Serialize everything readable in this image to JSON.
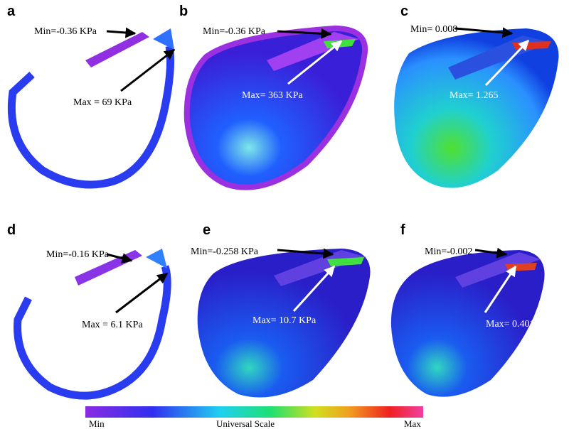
{
  "panels": [
    {
      "label": "a",
      "min": "Min=-0.36 KPa",
      "max": "Max = 69 KPa"
    },
    {
      "label": "b",
      "min": "Min=-0.36 KPa",
      "max": "Max= 363 KPa"
    },
    {
      "label": "c",
      "min": "Min= 0.008",
      "max": "Max= 1.265"
    },
    {
      "label": "d",
      "min": "Min=-0.16 KPa",
      "max": "Max = 6.1 KPa"
    },
    {
      "label": "e",
      "min": "Min=-0.258 KPa",
      "max": "Max= 10.7 KPa"
    },
    {
      "label": "f",
      "min": "Min=-0.002",
      "max": "Max= 0.401"
    }
  ],
  "scale": {
    "min": "Min",
    "title": "Universal Scale",
    "max": "Max"
  }
}
